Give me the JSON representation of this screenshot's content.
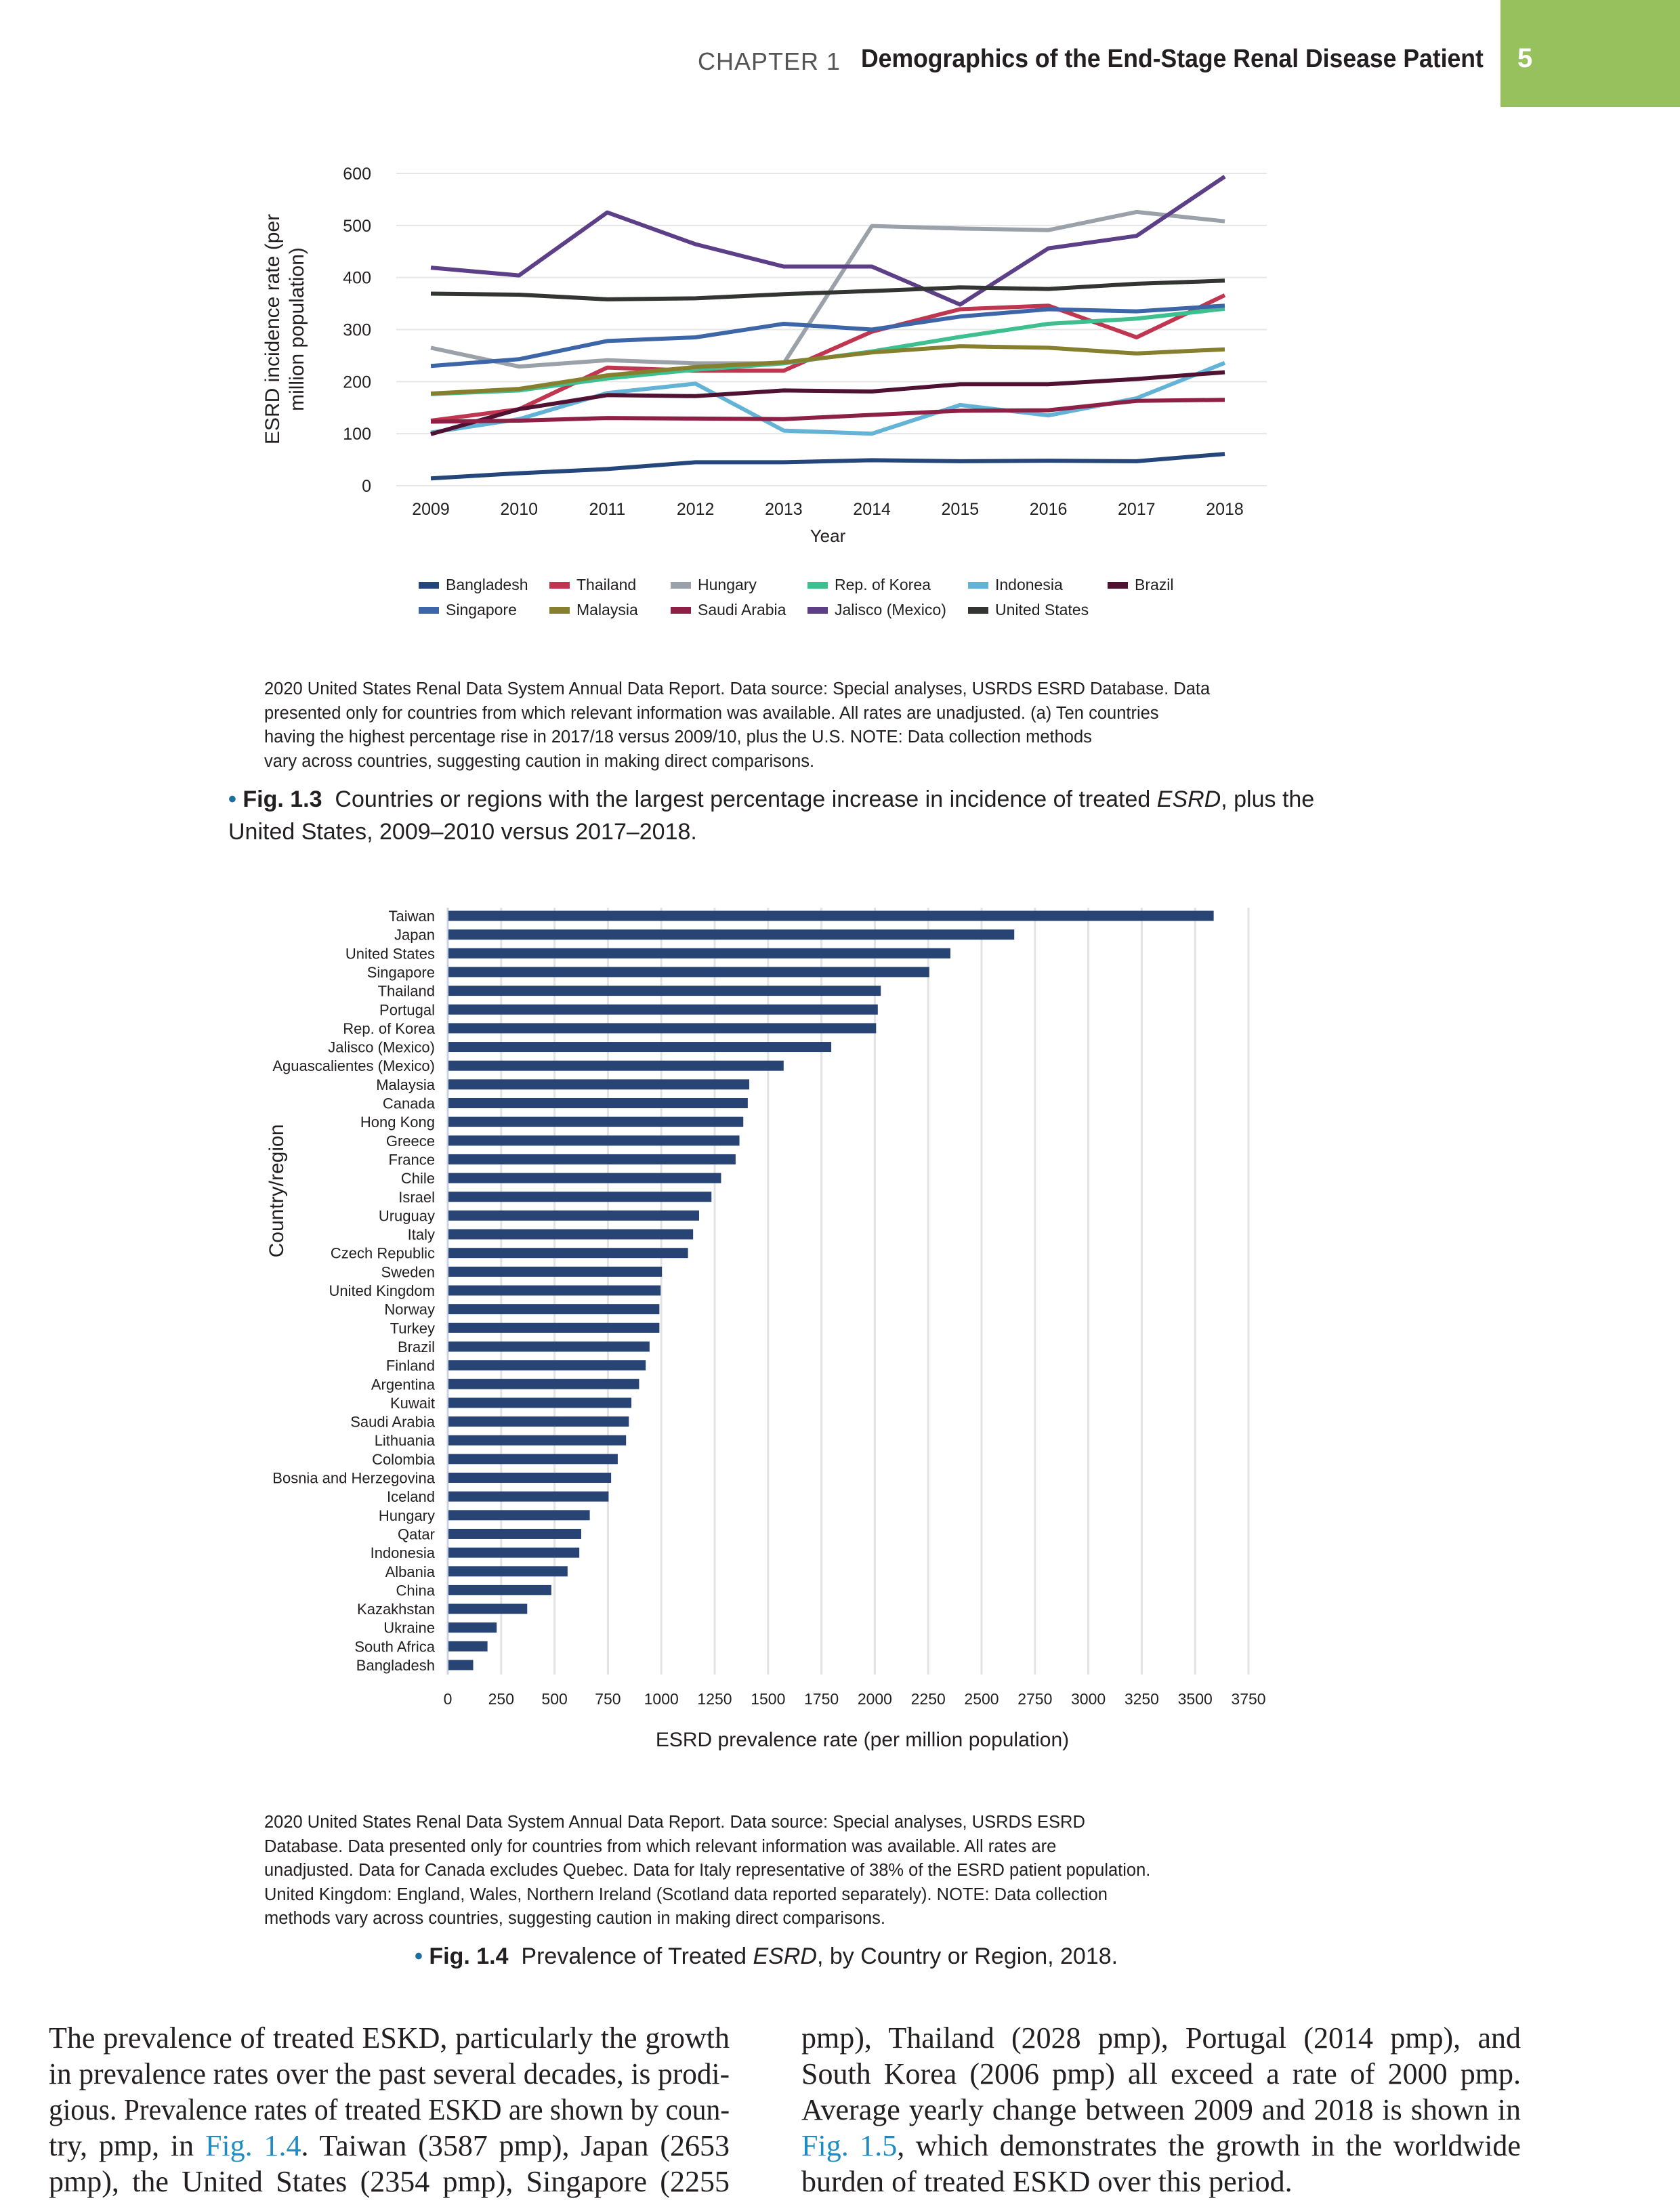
{
  "header": {
    "chapter": "CHAPTER 1",
    "title": "Demographics of the End-Stage Renal Disease Patient",
    "page_number": "5",
    "accent_color": "#96c15c"
  },
  "chart_data": [
    {
      "type": "line",
      "xlabel": "Year",
      "ylabel": "ESRD incidence rate (per million population)",
      "ylabel_lines": [
        "ESRD incidence rate (per",
        "million population)"
      ],
      "x": [
        2009,
        2010,
        2011,
        2012,
        2013,
        2014,
        2015,
        2016,
        2017,
        2018
      ],
      "ylim": [
        0,
        600
      ],
      "yticks": [
        0,
        100,
        200,
        300,
        400,
        500,
        600
      ],
      "grid": true,
      "legend_position": "bottom",
      "series": [
        {
          "name": "Bangladesh",
          "color": "#25467a",
          "values": [
            14,
            24,
            32,
            45,
            45,
            49,
            47,
            48,
            47,
            61
          ]
        },
        {
          "name": "Thailand",
          "color": "#c0354f",
          "values": [
            125,
            147,
            227,
            221,
            221,
            296,
            339,
            346,
            285,
            366
          ]
        },
        {
          "name": "Hungary",
          "color": "#9aa1a9",
          "values": [
            265,
            229,
            241,
            235,
            235,
            499,
            494,
            491,
            526,
            508
          ]
        },
        {
          "name": "Rep. of Korea",
          "color": "#3dbf8f",
          "values": [
            176,
            183,
            206,
            223,
            235,
            258,
            286,
            311,
            321,
            340
          ]
        },
        {
          "name": "Indonesia",
          "color": "#62b3d6",
          "values": [
            102,
            128,
            178,
            196,
            106,
            100,
            155,
            135,
            168,
            236
          ]
        },
        {
          "name": "Brazil",
          "color": "#4f1232",
          "values": [
            99,
            147,
            174,
            172,
            183,
            181,
            195,
            195,
            205,
            218
          ]
        },
        {
          "name": "Singapore",
          "color": "#3d66a8",
          "values": [
            230,
            243,
            278,
            285,
            311,
            300,
            325,
            339,
            335,
            346
          ]
        },
        {
          "name": "Malaysia",
          "color": "#857f2e",
          "values": [
            177,
            186,
            212,
            228,
            237,
            256,
            268,
            265,
            254,
            262
          ]
        },
        {
          "name": "Saudi Arabia",
          "color": "#8e1f45",
          "values": [
            123,
            125,
            130,
            129,
            128,
            136,
            144,
            145,
            163,
            165
          ]
        },
        {
          "name": "Jalisco (Mexico)",
          "color": "#5c3f87",
          "values": [
            419,
            404,
            525,
            464,
            421,
            421,
            348,
            456,
            480,
            594
          ]
        },
        {
          "name": "United States",
          "color": "#333533",
          "values": [
            369,
            367,
            358,
            360,
            368,
            374,
            381,
            378,
            388,
            394
          ]
        }
      ]
    },
    {
      "type": "bar",
      "orientation": "horizontal",
      "xlabel": "ESRD prevalence rate (per million population)",
      "ylabel": "Country/region",
      "xlim": [
        0,
        3750
      ],
      "xticks": [
        0,
        250,
        500,
        750,
        1000,
        1250,
        1500,
        1750,
        2000,
        2250,
        2500,
        2750,
        3000,
        3250,
        3500,
        3750
      ],
      "grid": true,
      "color": "#274474",
      "categories": [
        "Taiwan",
        "Japan",
        "United States",
        "Singapore",
        "Thailand",
        "Portugal",
        "Rep. of Korea",
        "Jalisco (Mexico)",
        "Aguascalientes (Mexico)",
        "Malaysia",
        "Canada",
        "Hong Kong",
        "Greece",
        "France",
        "Chile",
        "Israel",
        "Uruguay",
        "Italy",
        "Czech Republic",
        "Sweden",
        "United Kingdom",
        "Norway",
        "Turkey",
        "Brazil",
        "Finland",
        "Argentina",
        "Kuwait",
        "Saudi Arabia",
        "Lithuania",
        "Colombia",
        "Bosnia and Herzegovina",
        "Iceland",
        "Hungary",
        "Qatar",
        "Indonesia",
        "Albania",
        "China",
        "Kazakhstan",
        "Ukraine",
        "South Africa",
        "Bangladesh"
      ],
      "values": [
        3587,
        2653,
        2354,
        2255,
        2028,
        2014,
        2006,
        1796,
        1573,
        1412,
        1405,
        1384,
        1366,
        1348,
        1280,
        1235,
        1177,
        1149,
        1125,
        1003,
        997,
        991,
        991,
        945,
        927,
        896,
        860,
        848,
        835,
        796,
        765,
        753,
        665,
        625,
        616,
        561,
        485,
        372,
        229,
        186,
        119
      ]
    }
  ],
  "fig13": {
    "note_lines": [
      "2020 United States Renal Data System Annual Data Report. Data source: Special analyses, USRDS ESRD Database. Data",
      "presented only for countries from which relevant information was available. All rates are unadjusted. (a) Ten countries",
      "having the highest percentage rise in 2017/18 versus 2009/10, plus the U.S. NOTE: Data collection methods",
      "vary across countries, suggesting caution in making direct comparisons."
    ],
    "bullet": "•",
    "label": "Fig. 1.3",
    "caption_a": "Countries or regions with the largest percentage increase in incidence of treated ",
    "caption_em": "ESRD",
    "caption_b": ", plus the",
    "caption_line2": "United States, 2009–2010 versus 2017–2018."
  },
  "fig14": {
    "note_lines": [
      "2020 United States Renal Data System Annual Data Report. Data source: Special analyses, USRDS ESRD",
      "Database. Data presented only for countries from which relevant information was available. All rates are",
      "unadjusted. Data for Canada excludes Quebec. Data for Italy representative of 38% of the ESRD patient population.",
      "United Kingdom: England, Wales, Northern Ireland (Scotland data reported separately). NOTE: Data collection",
      "methods vary across countries, suggesting caution in making direct comparisons."
    ],
    "bullet": "•",
    "label": "Fig. 1.4",
    "caption_a": "Prevalence of Treated ",
    "caption_em": "ESRD",
    "caption_b": ", by Country or Region, 2018."
  },
  "body": {
    "left": [
      [
        {
          "t": "The prevalence of treated ESKD, particularly the growth"
        }
      ],
      [
        {
          "t": "in prevalence rates over the past several decades, is prodi-"
        }
      ],
      [
        {
          "t": "gious. Prevalence rates of treated ESKD are shown by coun-"
        }
      ],
      [
        {
          "t": "try, pmp, in "
        },
        {
          "t": "Fig. 1.4",
          "link": true
        },
        {
          "t": ". Taiwan (3587 pmp), Japan (2653"
        }
      ],
      [
        {
          "t": "pmp), the United States (2354 pmp), Singapore (2255"
        }
      ]
    ],
    "right": [
      [
        {
          "t": "pmp), Thailand (2028 pmp), Portugal (2014 pmp), and"
        }
      ],
      [
        {
          "t": "South Korea (2006 pmp) all exceed a rate of 2000 pmp."
        }
      ],
      [
        {
          "t": "Average yearly change between 2009 and 2018 is shown in"
        }
      ],
      [
        {
          "t": "Fig. 1.5",
          "link": true
        },
        {
          "t": ", which demonstrates the growth in the worldwide"
        }
      ],
      [
        {
          "t": "burden of treated ESKD over this period."
        }
      ]
    ]
  }
}
